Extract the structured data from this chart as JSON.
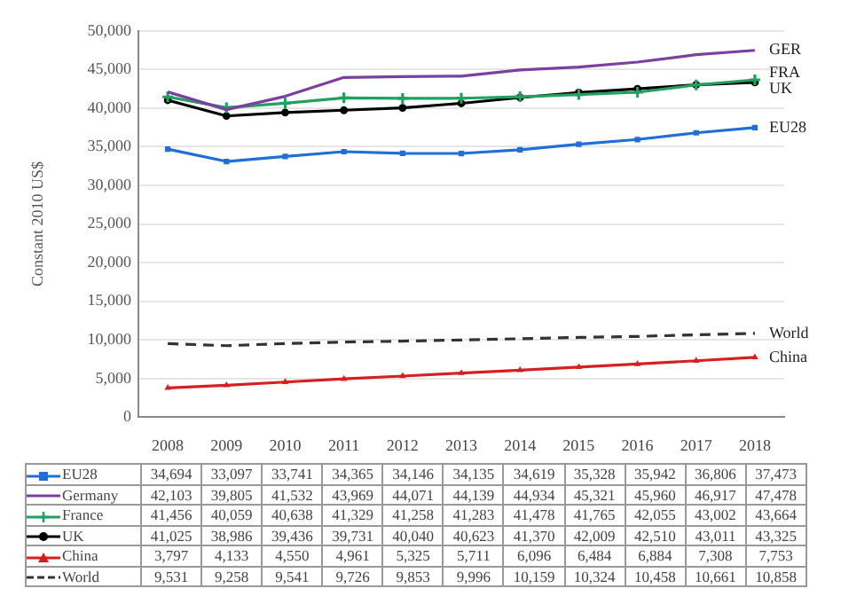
{
  "chart_data": {
    "type": "line",
    "ylabel": "Constant 2010 US$",
    "categories": [
      "2008",
      "2009",
      "2010",
      "2011",
      "2012",
      "2013",
      "2014",
      "2015",
      "2016",
      "2017",
      "2018"
    ],
    "series": [
      {
        "name": "EU28",
        "color": "#1f6fd6",
        "marker": "square",
        "values": [
          34694,
          33097,
          33741,
          34365,
          34146,
          34135,
          34619,
          35328,
          35942,
          36806,
          37473
        ],
        "value_labels": [
          "34,694",
          "33,097",
          "33,741",
          "34,365",
          "34,146",
          "34,135",
          "34,619",
          "35,328",
          "35,942",
          "36,806",
          "37,473"
        ]
      },
      {
        "name": "Germany",
        "color": "#7b3fa0",
        "marker": "none",
        "values": [
          42103,
          39805,
          41532,
          43969,
          44071,
          44139,
          44934,
          45321,
          45960,
          46917,
          47478
        ],
        "value_labels": [
          "42,103",
          "39,805",
          "41,532",
          "43,969",
          "44,071",
          "44,139",
          "44,934",
          "45,321",
          "45,960",
          "46,917",
          "47,478"
        ]
      },
      {
        "name": "France",
        "color": "#22a060",
        "marker": "cross",
        "values": [
          41456,
          40059,
          40638,
          41329,
          41258,
          41283,
          41478,
          41765,
          42055,
          43002,
          43664
        ],
        "value_labels": [
          "41,456",
          "40,059",
          "40,638",
          "41,329",
          "41,258",
          "41,283",
          "41,478",
          "41,765",
          "42,055",
          "43,002",
          "43,664"
        ]
      },
      {
        "name": "UK",
        "color": "#000000",
        "marker": "circle",
        "values": [
          41025,
          38986,
          39436,
          39731,
          40040,
          40623,
          41370,
          42009,
          42510,
          43011,
          43325
        ],
        "value_labels": [
          "41,025",
          "38,986",
          "39,436",
          "39,731",
          "40,040",
          "40,623",
          "41,370",
          "42,009",
          "42,510",
          "43,011",
          "43,325"
        ]
      },
      {
        "name": "China",
        "color": "#d62020",
        "marker": "triangle",
        "values": [
          3797,
          4133,
          4550,
          4961,
          5325,
          5711,
          6096,
          6484,
          6884,
          7308,
          7753
        ],
        "value_labels": [
          "3,797",
          "4,133",
          "4,550",
          "4,961",
          "5,325",
          "5,711",
          "6,096",
          "6,484",
          "6,884",
          "7,308",
          "7,753"
        ]
      },
      {
        "name": "World",
        "color": "#333333",
        "marker": "none",
        "line_style": "dashed",
        "values": [
          9531,
          9258,
          9541,
          9726,
          9853,
          9996,
          10159,
          10324,
          10458,
          10661,
          10858
        ],
        "value_labels": [
          "9,531",
          "9,258",
          "9,541",
          "9,726",
          "9,853",
          "9,996",
          "10,159",
          "10,324",
          "10,458",
          "10,661",
          "10,858"
        ]
      }
    ],
    "ylim": [
      0,
      50000
    ],
    "yticks": [
      0,
      {
        "value": 5000,
        "label": "5,000"
      },
      {
        "value": 10000,
        "label": "10,000"
      },
      {
        "value": 15000,
        "label": "15,000"
      },
      {
        "value": 20000,
        "label": "20,000"
      },
      {
        "value": 25000,
        "label": "25,000"
      },
      {
        "value": 30000,
        "label": "30,000"
      },
      {
        "value": 35000,
        "label": "35,000"
      },
      {
        "value": 40000,
        "label": "40,000"
      },
      {
        "value": 45000,
        "label": "45,000"
      },
      {
        "value": 50000,
        "label": "50,000"
      }
    ],
    "grid": "y",
    "legend": "bottom",
    "annotations": [
      {
        "text": "GER",
        "x": "2018",
        "y": 47478
      },
      {
        "text": "FRA",
        "x": "2018",
        "y": 43664
      },
      {
        "text": "UK",
        "x": "2018",
        "y": 43325
      },
      {
        "text": "EU28",
        "x": "2018",
        "y": 37473
      },
      {
        "text": "World",
        "x": "2018",
        "y": 10858
      },
      {
        "text": "China",
        "x": "2018",
        "y": 7753
      }
    ]
  }
}
